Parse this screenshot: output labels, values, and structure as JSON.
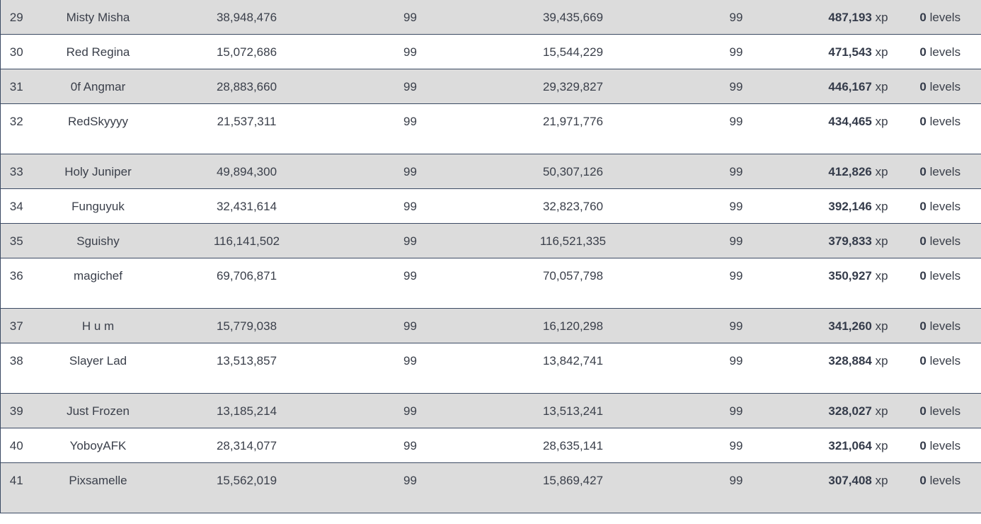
{
  "rows": [
    {
      "rank": "29",
      "name": "Misty Misha",
      "total_xp": "38,948,476",
      "level_a": "99",
      "xp_b": "39,435,669",
      "level_b": "99",
      "gain_value": "487,193",
      "gain_unit": "xp",
      "levels_value": "0",
      "levels_unit": "levels"
    },
    {
      "rank": "30",
      "name": "Red Regina",
      "total_xp": "15,072,686",
      "level_a": "99",
      "xp_b": "15,544,229",
      "level_b": "99",
      "gain_value": "471,543",
      "gain_unit": "xp",
      "levels_value": "0",
      "levels_unit": "levels"
    },
    {
      "rank": "31",
      "name": "0f Angmar",
      "total_xp": "28,883,660",
      "level_a": "99",
      "xp_b": "29,329,827",
      "level_b": "99",
      "gain_value": "446,167",
      "gain_unit": "xp",
      "levels_value": "0",
      "levels_unit": "levels"
    },
    {
      "rank": "32",
      "name": "RedSkyyyy",
      "total_xp": "21,537,311",
      "level_a": "99",
      "xp_b": "21,971,776",
      "level_b": "99",
      "gain_value": "434,465",
      "gain_unit": "xp",
      "levels_value": "0",
      "levels_unit": "levels"
    },
    {
      "rank": "33",
      "name": "Holy Juniper",
      "total_xp": "49,894,300",
      "level_a": "99",
      "xp_b": "50,307,126",
      "level_b": "99",
      "gain_value": "412,826",
      "gain_unit": "xp",
      "levels_value": "0",
      "levels_unit": "levels"
    },
    {
      "rank": "34",
      "name": "Funguyuk",
      "total_xp": "32,431,614",
      "level_a": "99",
      "xp_b": "32,823,760",
      "level_b": "99",
      "gain_value": "392,146",
      "gain_unit": "xp",
      "levels_value": "0",
      "levels_unit": "levels"
    },
    {
      "rank": "35",
      "name": "Sguishy",
      "total_xp": "116,141,502",
      "level_a": "99",
      "xp_b": "116,521,335",
      "level_b": "99",
      "gain_value": "379,833",
      "gain_unit": "xp",
      "levels_value": "0",
      "levels_unit": "levels"
    },
    {
      "rank": "36",
      "name": "magichef",
      "total_xp": "69,706,871",
      "level_a": "99",
      "xp_b": "70,057,798",
      "level_b": "99",
      "gain_value": "350,927",
      "gain_unit": "xp",
      "levels_value": "0",
      "levels_unit": "levels"
    },
    {
      "rank": "37",
      "name": "H u m",
      "total_xp": "15,779,038",
      "level_a": "99",
      "xp_b": "16,120,298",
      "level_b": "99",
      "gain_value": "341,260",
      "gain_unit": "xp",
      "levels_value": "0",
      "levels_unit": "levels"
    },
    {
      "rank": "38",
      "name": "Slayer Lad",
      "total_xp": "13,513,857",
      "level_a": "99",
      "xp_b": "13,842,741",
      "level_b": "99",
      "gain_value": "328,884",
      "gain_unit": "xp",
      "levels_value": "0",
      "levels_unit": "levels"
    },
    {
      "rank": "39",
      "name": "Just Frozen",
      "total_xp": "13,185,214",
      "level_a": "99",
      "xp_b": "13,513,241",
      "level_b": "99",
      "gain_value": "328,027",
      "gain_unit": "xp",
      "levels_value": "0",
      "levels_unit": "levels"
    },
    {
      "rank": "40",
      "name": "YoboyAFK",
      "total_xp": "28,314,077",
      "level_a": "99",
      "xp_b": "28,635,141",
      "level_b": "99",
      "gain_value": "321,064",
      "gain_unit": "xp",
      "levels_value": "0",
      "levels_unit": "levels"
    },
    {
      "rank": "41",
      "name": "Pixsamelle",
      "total_xp": "15,562,019",
      "level_a": "99",
      "xp_b": "15,869,427",
      "level_b": "99",
      "gain_value": "307,408",
      "gain_unit": "xp",
      "levels_value": "0",
      "levels_unit": "levels"
    }
  ]
}
